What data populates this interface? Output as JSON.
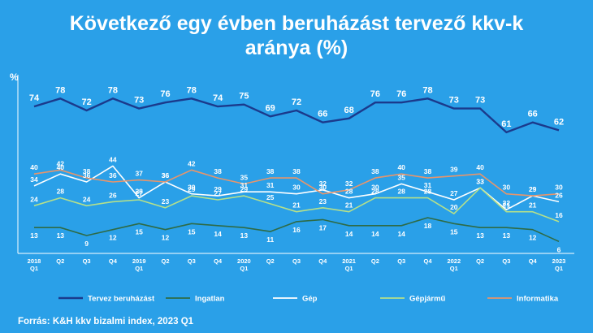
{
  "title_lines": [
    "Következő egy évben beruházást tervező kkv-k",
    "aránya (%)"
  ],
  "source": "Forrás: K&H kkv bizalmi index, 2023 Q1",
  "chart_data": {
    "type": "line",
    "ylabel": "%",
    "ylim": [
      0,
      90
    ],
    "grid": false,
    "legend_position": "bottom",
    "categories": [
      [
        "2018",
        "Q1"
      ],
      [
        "Q2"
      ],
      [
        "Q3"
      ],
      [
        "Q4"
      ],
      [
        "2019",
        "Q1"
      ],
      [
        "Q2"
      ],
      [
        "Q3"
      ],
      [
        "Q4"
      ],
      [
        "2020",
        "Q1"
      ],
      [
        "Q2"
      ],
      [
        "Q3"
      ],
      [
        "Q4"
      ],
      [
        "2021",
        "Q1"
      ],
      [
        "Q2"
      ],
      [
        "Q3"
      ],
      [
        "Q4"
      ],
      [
        "2022",
        "Q1"
      ],
      [
        "Q2"
      ],
      [
        "Q3"
      ],
      [
        "Q4"
      ],
      [
        "2023",
        "Q1"
      ]
    ],
    "series": [
      {
        "name": "Tervez beruházást",
        "color": "#1b3a8c",
        "values": [
          74,
          78,
          72,
          78,
          73,
          76,
          78,
          74,
          75,
          69,
          72,
          66,
          68,
          76,
          76,
          78,
          73,
          73,
          61,
          66,
          62
        ]
      },
      {
        "name": "Ingatlan",
        "color": "#2e6b46",
        "values": [
          13,
          13,
          9,
          12,
          15,
          12,
          15,
          14,
          13,
          11,
          16,
          17,
          14,
          14,
          14,
          18,
          15,
          13,
          13,
          12,
          6
        ]
      },
      {
        "name": "Gép",
        "color": "#ffffff",
        "values": [
          34,
          40,
          36,
          44,
          28,
          36,
          30,
          29,
          31,
          31,
          30,
          32,
          28,
          30,
          35,
          31,
          27,
          33,
          22,
          29,
          26
        ]
      },
      {
        "name": "Gépjármű",
        "color": "#b5e08a",
        "values": [
          24,
          28,
          24,
          26,
          27,
          23,
          29,
          27,
          29,
          25,
          21,
          23,
          21,
          28,
          28,
          28,
          20,
          33,
          21,
          21,
          16
        ]
      },
      {
        "name": "Informatika",
        "color": "#e8956b",
        "values": [
          40,
          42,
          38,
          36,
          37,
          36,
          42,
          38,
          35,
          38,
          38,
          30,
          32,
          38,
          40,
          38,
          39,
          40,
          30,
          29,
          30
        ]
      }
    ]
  }
}
